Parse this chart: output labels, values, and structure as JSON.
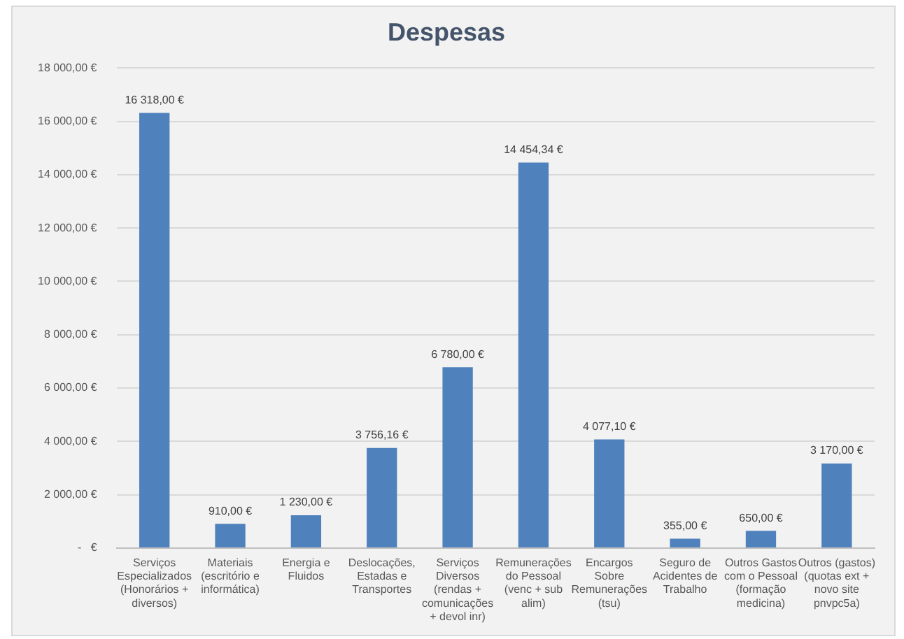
{
  "chart_data": {
    "type": "bar",
    "title": "Despesas",
    "categories": [
      "Serviços Especializados (Honorários + diversos)",
      "Materiais (escritório e informática)",
      "Energia e Fluidos",
      "Deslocações, Estadas e Transportes",
      "Serviços Diversos (rendas + comunicações + devol inr)",
      "Remunerações do Pessoal (venc + sub alim)",
      "Encargos Sobre Remunerações (tsu)",
      "Seguro de Acidentes de Trabalho",
      "Outros Gastos com o Pessoal (formação medicina)",
      "Outros (gastos) (quotas ext + novo site pnvpc5a)"
    ],
    "values": [
      16318,
      910,
      1230,
      3756.16,
      6780,
      14454.34,
      4077.1,
      355,
      650,
      3170
    ],
    "value_labels": [
      "16 318,00 €",
      "910,00 €",
      "1 230,00 €",
      "3 756,16 €",
      "6 780,00 €",
      "14 454,34 €",
      "4 077,10 €",
      "355,00 €",
      "650,00 €",
      "3 170,00 €"
    ],
    "color": "#4f81bd",
    "ylim": [
      0,
      18000
    ],
    "yticks": [
      {
        "value": 0,
        "label": "-   €"
      },
      {
        "value": 2000,
        "label": "2 000,00 €"
      },
      {
        "value": 4000,
        "label": "4 000,00 €"
      },
      {
        "value": 6000,
        "label": "6 000,00 €"
      },
      {
        "value": 8000,
        "label": "8 000,00 €"
      },
      {
        "value": 10000,
        "label": "10 000,00 €"
      },
      {
        "value": 12000,
        "label": "12 000,00 €"
      },
      {
        "value": 14000,
        "label": "14 000,00 €"
      },
      {
        "value": 16000,
        "label": "16 000,00 €"
      },
      {
        "value": 18000,
        "label": "18 000,00 €"
      }
    ],
    "grid": "y"
  }
}
